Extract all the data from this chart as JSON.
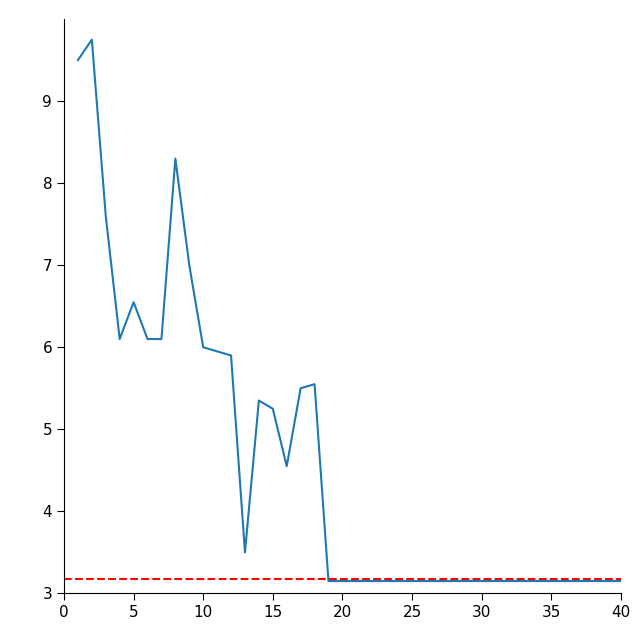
{
  "x": [
    1,
    2,
    3,
    4,
    5,
    6,
    7,
    8,
    9,
    10,
    11,
    12,
    13,
    14,
    15,
    16,
    17,
    18,
    19,
    20,
    21,
    22,
    23,
    24,
    25,
    26,
    27,
    28,
    29,
    30,
    31,
    32,
    33,
    34,
    35,
    36,
    37,
    38,
    39,
    40
  ],
  "y": [
    9.5,
    9.75,
    7.6,
    6.1,
    6.55,
    6.1,
    6.1,
    8.3,
    7.0,
    6.0,
    5.95,
    5.9,
    3.5,
    5.35,
    5.25,
    4.55,
    5.5,
    5.55,
    3.15,
    3.15,
    3.15,
    3.15,
    3.15,
    3.15,
    3.15,
    3.15,
    3.15,
    3.15,
    3.15,
    3.15,
    3.15,
    3.15,
    3.15,
    3.15,
    3.15,
    3.15,
    3.15,
    3.15,
    3.15,
    3.15
  ],
  "line_color": "#1f77b4",
  "dashed_y": 3.18,
  "dashed_color": "#ff0000",
  "xlim": [
    0,
    40
  ],
  "ylim": [
    3.0,
    10.0
  ],
  "xticks": [
    0,
    5,
    10,
    15,
    20,
    25,
    30,
    35,
    40
  ],
  "yticks": [
    3,
    4,
    5,
    6,
    7,
    8,
    9
  ],
  "background_color": "#ffffff"
}
